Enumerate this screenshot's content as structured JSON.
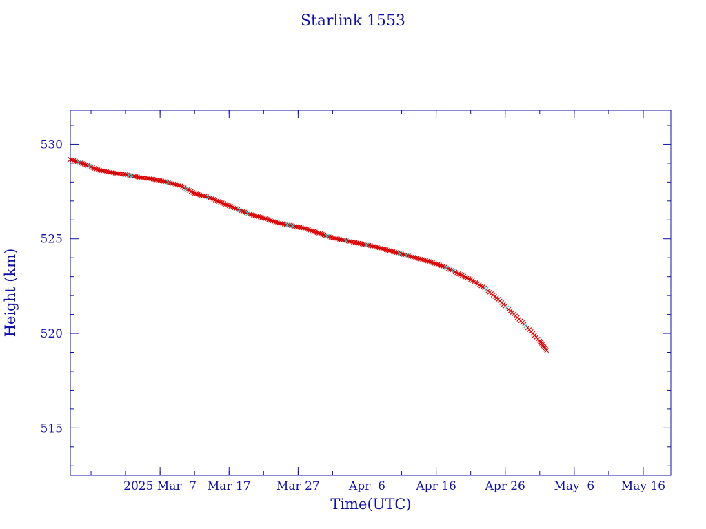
{
  "chart_data": {
    "type": "scatter",
    "title": "Starlink 1553",
    "xlabel": "Time(UTC)",
    "ylabel": "Height (km)",
    "xlim": [
      "2025-02-22",
      "2025-05-20"
    ],
    "ylim": [
      512.5,
      531.8
    ],
    "xticks": [
      {
        "date": "2025-03-07",
        "label": "2025 Mar  7"
      },
      {
        "date": "2025-03-17",
        "label": "Mar 17"
      },
      {
        "date": "2025-03-27",
        "label": "Mar 27"
      },
      {
        "date": "2025-04-06",
        "label": "Apr  6"
      },
      {
        "date": "2025-04-16",
        "label": "Apr 16"
      },
      {
        "date": "2025-04-26",
        "label": "Apr 26"
      },
      {
        "date": "2025-05-06",
        "label": "May  6"
      },
      {
        "date": "2025-05-16",
        "label": "May 16"
      }
    ],
    "yticks": [
      515,
      520,
      525,
      530
    ],
    "grid": false,
    "colors": {
      "axis": "#1010a8",
      "points": "#e00000",
      "highlight": "#00d8d8",
      "line": "#000000"
    },
    "series": [
      {
        "x": [
          "2025-02-22",
          "2025-02-24",
          "2025-02-26",
          "2025-02-28",
          "2025-03-02",
          "2025-03-04",
          "2025-03-06",
          "2025-03-08",
          "2025-03-10",
          "2025-03-12",
          "2025-03-14",
          "2025-03-16",
          "2025-03-18",
          "2025-03-20",
          "2025-03-22",
          "2025-03-24",
          "2025-03-26",
          "2025-03-28",
          "2025-03-30",
          "2025-04-01",
          "2025-04-03",
          "2025-04-05",
          "2025-04-07",
          "2025-04-09",
          "2025-04-11",
          "2025-04-13",
          "2025-04-15",
          "2025-04-17",
          "2025-04-19",
          "2025-04-21",
          "2025-04-23",
          "2025-04-25",
          "2025-04-27",
          "2025-04-29",
          "2025-05-01",
          "2025-05-02"
        ],
        "y": [
          529.2,
          528.95,
          528.65,
          528.5,
          528.4,
          528.25,
          528.15,
          528.0,
          527.8,
          527.4,
          527.2,
          526.9,
          526.6,
          526.3,
          526.1,
          525.85,
          525.7,
          525.55,
          525.3,
          525.05,
          524.9,
          524.75,
          524.6,
          524.4,
          524.2,
          524.0,
          523.8,
          523.55,
          523.2,
          522.85,
          522.4,
          521.8,
          521.1,
          520.4,
          519.6,
          519.1
        ]
      }
    ]
  }
}
